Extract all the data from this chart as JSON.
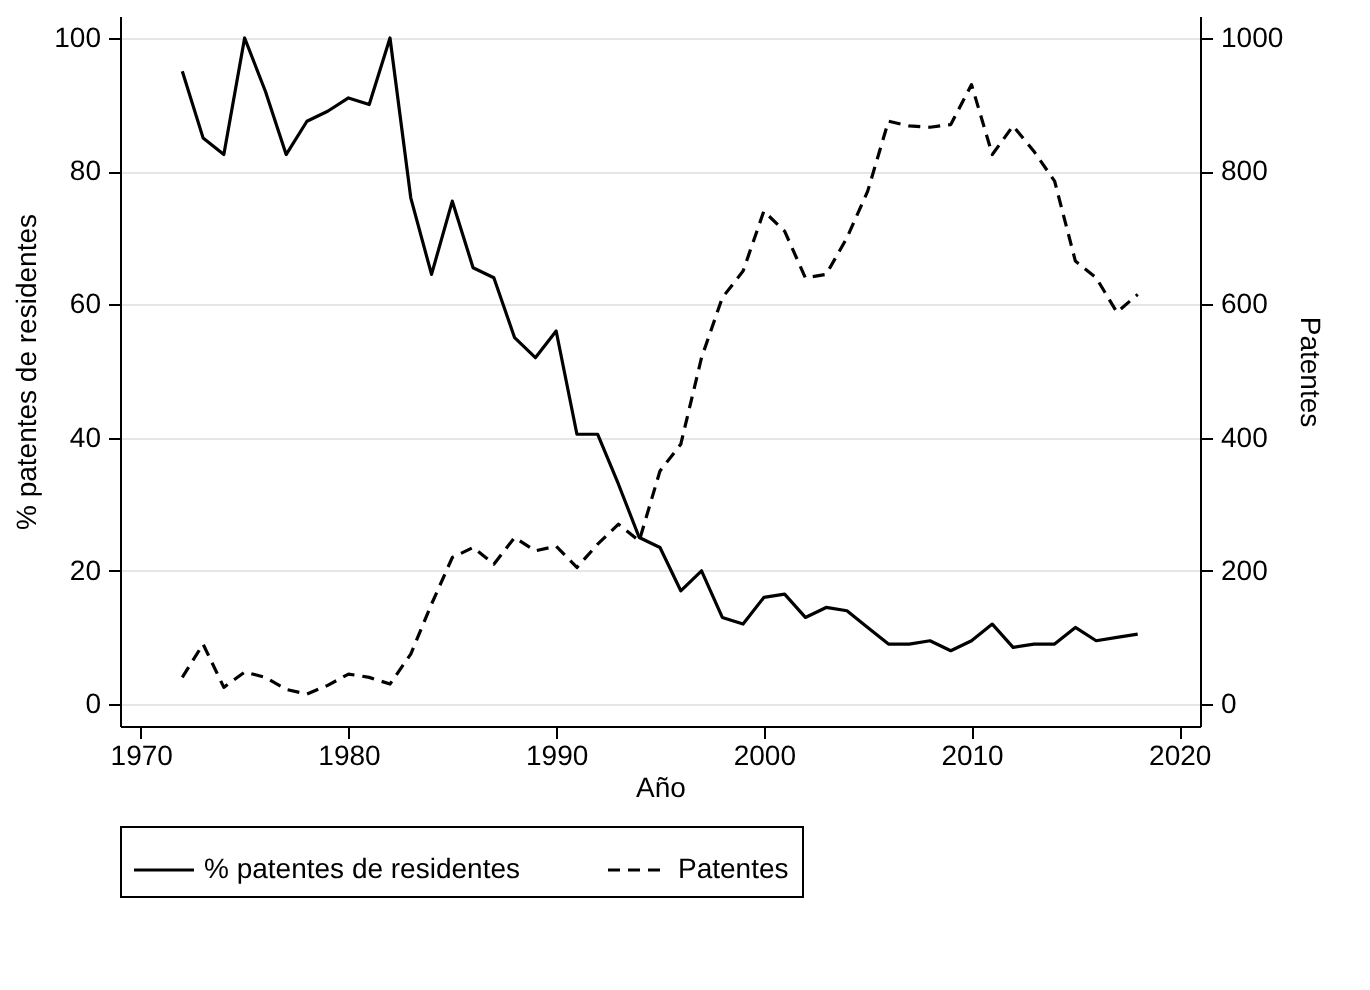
{
  "chart_data": {
    "type": "line",
    "xlabel": "Año",
    "ylabel": "% patentes de residentes",
    "y2label": "Patentes",
    "x": [
      1972,
      1973,
      1974,
      1975,
      1976,
      1977,
      1978,
      1979,
      1980,
      1981,
      1982,
      1983,
      1984,
      1985,
      1986,
      1987,
      1988,
      1989,
      1990,
      1991,
      1992,
      1993,
      1994,
      1995,
      1996,
      1997,
      1998,
      1999,
      2000,
      2001,
      2002,
      2003,
      2004,
      2005,
      2006,
      2007,
      2008,
      2009,
      2010,
      2011,
      2012,
      2013,
      2014,
      2015,
      2016,
      2017,
      2018
    ],
    "series": [
      {
        "name": "% patentes de residentes",
        "color": "#000000",
        "line_style": "solid",
        "values": [
          95,
          85,
          82.5,
          100,
          92,
          82.5,
          87.5,
          89,
          91,
          90,
          100,
          76,
          64.5,
          75.5,
          65.5,
          64,
          55,
          52,
          56,
          40.5,
          40.5,
          33,
          25,
          23.5,
          17,
          20,
          13,
          12,
          16,
          16.5,
          13,
          14.5,
          14,
          11.5,
          9,
          9,
          9.5,
          8,
          9.5,
          12,
          8.5,
          9,
          9,
          11.5,
          9.5,
          10,
          10.5
        ]
      },
      {
        "name": "Patentes",
        "color": "#000000",
        "line_style": "dashed",
        "axis": "y2",
        "values": [
          40,
          90,
          25,
          48,
          40,
          22,
          15,
          28,
          45,
          40,
          30,
          75,
          150,
          220,
          235,
          210,
          250,
          230,
          237,
          205,
          240,
          270,
          245,
          350,
          390,
          520,
          610,
          650,
          740,
          710,
          640,
          645,
          700,
          770,
          875,
          868,
          866,
          870,
          930,
          825,
          868,
          830,
          785,
          665,
          640,
          588,
          615
        ]
      }
    ],
    "xlim": [
      1969,
      2021
    ],
    "xticks": [
      1970,
      1980,
      1990,
      2000,
      2010,
      2020
    ],
    "ylim": [
      -3.3,
      103.3
    ],
    "yticks": [
      0,
      20,
      40,
      60,
      80,
      100
    ],
    "y2lim": [
      -33,
      1033
    ],
    "y2ticks": [
      0,
      200,
      400,
      600,
      800,
      1000
    ],
    "grid": "y",
    "legend": "bottom"
  }
}
